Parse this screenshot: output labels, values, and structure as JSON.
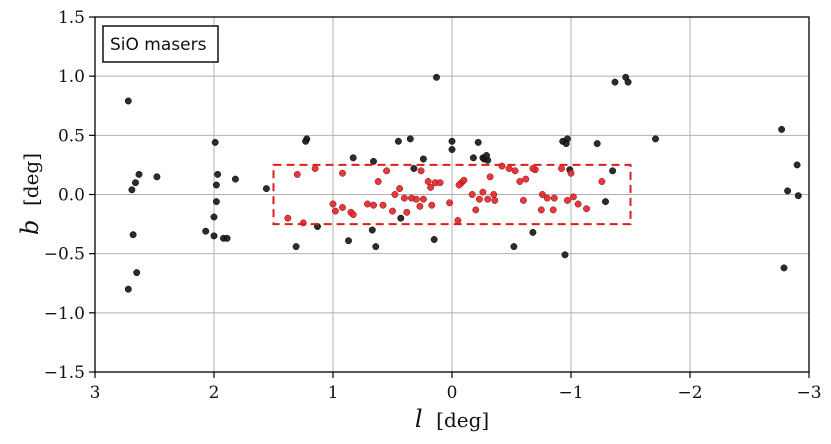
{
  "chart_data": {
    "type": "scatter",
    "title": "",
    "xlabel": "l [deg]",
    "ylabel": "b [deg]",
    "xlabel_var": "l",
    "xlabel_unit": "[deg]",
    "ylabel_var": "b",
    "ylabel_unit": "[deg]",
    "xlim": [
      3,
      -3
    ],
    "ylim": [
      -1.5,
      1.5
    ],
    "x_reversed": true,
    "grid": true,
    "xticks": [
      3,
      2,
      1,
      0,
      -1,
      -2,
      -3
    ],
    "xtick_labels": [
      "3",
      "2",
      "1",
      "0",
      "−1",
      "−2",
      "−3"
    ],
    "yticks": [
      1.5,
      1.0,
      0.5,
      0.0,
      -0.5,
      -1.0,
      -1.5
    ],
    "ytick_labels": [
      "1.5",
      "1.0",
      "0.5",
      "0.0",
      "−0.5",
      "−1.0",
      "−1.5"
    ],
    "legend": {
      "label": "SiO masers",
      "placement": "top-left"
    },
    "colors": {
      "outside": "#1a1a1a",
      "inside": "#e8262b",
      "region_box": "#dd1c1c",
      "grid": "#b0b0b0"
    },
    "region": {
      "l_range": [
        1.5,
        -1.5
      ],
      "b_range": [
        -0.25,
        0.25
      ],
      "style": "dashed"
    },
    "series": [
      {
        "points": [
          [
            2.72,
            0.79
          ],
          [
            2.69,
            0.04
          ],
          [
            2.66,
            0.1
          ],
          [
            2.63,
            0.17
          ],
          [
            2.68,
            -0.34
          ],
          [
            2.65,
            -0.66
          ],
          [
            2.72,
            -0.8
          ],
          [
            2.48,
            0.15
          ],
          [
            1.99,
            0.44
          ],
          [
            1.97,
            0.17
          ],
          [
            1.98,
            0.08
          ],
          [
            1.82,
            0.13
          ],
          [
            1.98,
            -0.06
          ],
          [
            2.0,
            -0.19
          ],
          [
            2.07,
            -0.31
          ],
          [
            2.0,
            -0.35
          ],
          [
            1.92,
            -0.37
          ],
          [
            1.89,
            -0.37
          ],
          [
            1.56,
            0.05
          ],
          [
            1.22,
            0.47
          ],
          [
            1.23,
            0.45
          ],
          [
            1.31,
            -0.44
          ],
          [
            1.13,
            -0.27
          ],
          [
            0.87,
            -0.39
          ],
          [
            0.64,
            -0.44
          ],
          [
            0.67,
            -0.3
          ],
          [
            0.43,
            -0.2
          ],
          [
            0.15,
            -0.38
          ],
          [
            0.83,
            0.31
          ],
          [
            0.66,
            0.28
          ],
          [
            0.45,
            0.45
          ],
          [
            0.35,
            0.47
          ],
          [
            0.24,
            0.3
          ],
          [
            0.32,
            0.22
          ],
          [
            0.13,
            0.99
          ],
          [
            0.0,
            0.45
          ],
          [
            0.0,
            0.38
          ],
          [
            -0.22,
            0.44
          ],
          [
            -0.18,
            0.31
          ],
          [
            -0.26,
            0.31
          ],
          [
            -0.27,
            0.3
          ],
          [
            -0.3,
            0.29
          ],
          [
            -0.29,
            0.33
          ],
          [
            -0.52,
            -0.44
          ],
          [
            -0.68,
            -0.32
          ],
          [
            -0.93,
            0.45
          ],
          [
            -0.97,
            0.47
          ],
          [
            -0.96,
            0.43
          ],
          [
            -0.99,
            0.21
          ],
          [
            -0.95,
            -0.51
          ],
          [
            -1.22,
            0.43
          ],
          [
            -1.35,
            0.2
          ],
          [
            -1.29,
            -0.06
          ],
          [
            -1.37,
            0.95
          ],
          [
            -1.46,
            0.99
          ],
          [
            -1.48,
            0.95
          ],
          [
            -1.71,
            0.47
          ],
          [
            -2.77,
            0.55
          ],
          [
            -2.82,
            0.03
          ],
          [
            -2.9,
            0.25
          ],
          [
            -2.91,
            -0.01
          ],
          [
            -2.79,
            -0.62
          ]
        ]
      },
      {
        "points": [
          [
            1.38,
            -0.2
          ],
          [
            1.3,
            0.17
          ],
          [
            1.25,
            -0.24
          ],
          [
            1.15,
            0.22
          ],
          [
            1.0,
            -0.08
          ],
          [
            0.98,
            -0.14
          ],
          [
            0.92,
            -0.11
          ],
          [
            0.85,
            -0.15
          ],
          [
            0.83,
            -0.17
          ],
          [
            0.92,
            0.18
          ],
          [
            0.71,
            -0.08
          ],
          [
            0.66,
            -0.09
          ],
          [
            0.62,
            0.11
          ],
          [
            0.58,
            -0.09
          ],
          [
            0.5,
            -0.14
          ],
          [
            0.48,
            0.0
          ],
          [
            0.44,
            0.05
          ],
          [
            0.4,
            -0.03
          ],
          [
            0.38,
            -0.15
          ],
          [
            0.34,
            -0.03
          ],
          [
            0.3,
            -0.04
          ],
          [
            0.26,
            0.2
          ],
          [
            0.27,
            -0.1
          ],
          [
            0.24,
            -0.04
          ],
          [
            0.2,
            0.11
          ],
          [
            0.18,
            0.06
          ],
          [
            0.17,
            -0.09
          ],
          [
            0.14,
            0.1
          ],
          [
            0.1,
            0.1
          ],
          [
            0.02,
            -0.07
          ],
          [
            -0.05,
            -0.22
          ],
          [
            -0.08,
            0.1
          ],
          [
            -0.1,
            0.12
          ],
          [
            -0.06,
            0.08
          ],
          [
            -0.17,
            0.0
          ],
          [
            -0.23,
            -0.04
          ],
          [
            -0.2,
            -0.13
          ],
          [
            -0.26,
            0.02
          ],
          [
            -0.32,
            0.15
          ],
          [
            -0.36,
            -0.05
          ],
          [
            -0.3,
            -0.04
          ],
          [
            -0.42,
            0.24
          ],
          [
            -0.48,
            0.22
          ],
          [
            -0.53,
            0.2
          ],
          [
            -0.57,
            0.11
          ],
          [
            -0.6,
            -0.05
          ],
          [
            -0.62,
            0.13
          ],
          [
            -0.7,
            0.21
          ],
          [
            -0.76,
            0.0
          ],
          [
            -0.8,
            -0.03
          ],
          [
            -0.85,
            -0.13
          ],
          [
            -0.86,
            -0.03
          ],
          [
            -0.92,
            0.22
          ],
          [
            -0.97,
            -0.05
          ],
          [
            -1.0,
            0.18
          ],
          [
            -1.02,
            -0.02
          ],
          [
            -1.06,
            -0.08
          ],
          [
            -1.13,
            -0.12
          ],
          [
            -1.26,
            0.11
          ],
          [
            -0.75,
            -0.13
          ],
          [
            -0.68,
            0.22
          ],
          [
            -0.35,
            0.0
          ],
          [
            0.55,
            0.2
          ]
        ]
      }
    ]
  }
}
